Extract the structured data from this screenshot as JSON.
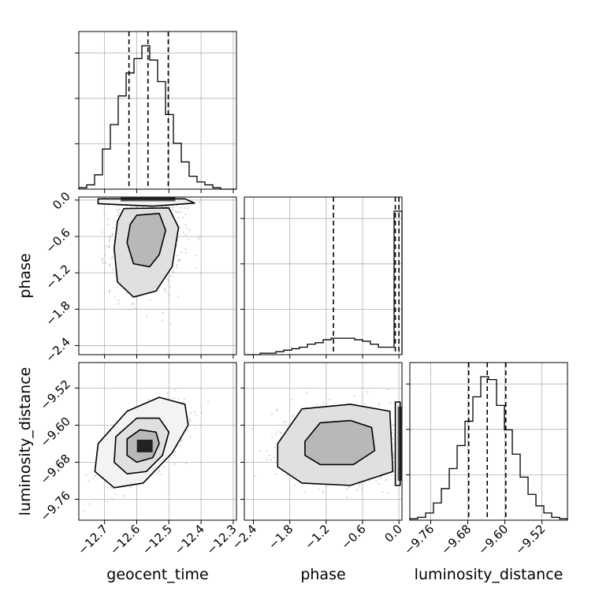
{
  "chart_data": {
    "type": "corner",
    "parameters": [
      "geocent_time",
      "phase",
      "luminosity_distance"
    ],
    "axis_labels": {
      "geocent_time": "geocent_time",
      "phase": "phase",
      "luminosity_distance": "luminosity_distance"
    },
    "grid": true,
    "ranges": {
      "geocent_time": [
        -12.78,
        -12.29
      ],
      "phase": [
        -2.55,
        0.05
      ],
      "luminosity_distance": [
        -9.805,
        -9.465
      ]
    },
    "ticks": {
      "geocent_time": {
        "values": [
          -12.7,
          -12.6,
          -12.5,
          -12.4,
          -12.3
        ],
        "labels": [
          "−12.7",
          "−12.6",
          "−12.5",
          "−12.4",
          "−12.3"
        ]
      },
      "phase": {
        "values": [
          -2.4,
          -1.8,
          -1.2,
          -0.6,
          0.0
        ],
        "labels": [
          "−2.4",
          "−1.8",
          "−1.2",
          "−0.6",
          "0.0"
        ]
      },
      "luminosity_distance": {
        "values": [
          -9.76,
          -9.68,
          -9.6,
          -9.52
        ],
        "labels": [
          "−9.76",
          "−9.68",
          "−9.60",
          "−9.52"
        ]
      }
    },
    "histograms": {
      "geocent_time": {
        "bin_edges": [
          -12.78,
          -12.7555,
          -12.731,
          -12.7065,
          -12.682,
          -12.6575,
          -12.633,
          -12.6085,
          -12.584,
          -12.5595,
          -12.535,
          -12.5105,
          -12.486,
          -12.4615,
          -12.437,
          -12.4125,
          -12.388,
          -12.3635,
          -12.339,
          -12.3145,
          -12.29
        ],
        "counts": [
          1,
          3,
          10,
          28,
          45,
          65,
          81,
          91,
          100,
          90,
          75,
          52,
          32,
          19,
          9,
          5,
          3,
          1,
          0,
          0
        ],
        "quantiles": [
          -12.624,
          -12.565,
          -12.502
        ]
      },
      "phase": {
        "bin_edges": [
          -2.55,
          -2.42,
          -2.29,
          -2.16,
          -2.03,
          -1.9,
          -1.77,
          -1.64,
          -1.51,
          -1.38,
          -1.25,
          -1.12,
          -0.99,
          -0.86,
          -0.73,
          -0.6,
          -0.47,
          -0.34,
          -0.21,
          -0.08,
          0.05
        ],
        "counts": [
          0,
          0,
          1,
          1,
          2,
          3,
          4,
          5,
          7,
          8,
          10,
          11,
          11,
          11,
          10,
          9,
          7,
          5,
          5,
          96
        ],
        "quantiles": [
          -1.08,
          -0.06,
          0.0
        ]
      },
      "luminosity_distance": {
        "bin_edges": [
          -9.805,
          -9.788,
          -9.771,
          -9.754,
          -9.737,
          -9.72,
          -9.703,
          -9.686,
          -9.669,
          -9.652,
          -9.635,
          -9.618,
          -9.601,
          -9.584,
          -9.567,
          -9.55,
          -9.533,
          -9.516,
          -9.499,
          -9.482,
          -9.465
        ],
        "counts": [
          1,
          2,
          5,
          12,
          22,
          36,
          52,
          69,
          86,
          100,
          98,
          80,
          63,
          46,
          30,
          18,
          10,
          5,
          2,
          1
        ],
        "quantiles": [
          -9.678,
          -9.638,
          -9.598
        ]
      }
    },
    "density_panels": [
      {
        "x": "geocent_time",
        "y": "phase",
        "sample_center": [
          -12.57,
          -0.55
        ],
        "sample_spread": [
          0.055,
          0.5
        ],
        "dense_strip": {
          "y_range": [
            -0.02,
            0.05
          ],
          "x_range": [
            -12.65,
            -12.48
          ]
        },
        "contours": [
          [
            [
              -12.6,
              -0.25
            ],
            [
              -12.53,
              -0.22
            ],
            [
              -12.51,
              -0.5
            ],
            [
              -12.53,
              -0.9
            ],
            [
              -12.56,
              -1.1
            ],
            [
              -12.61,
              -1.05
            ],
            [
              -12.63,
              -0.7
            ],
            [
              -12.62,
              -0.4
            ]
          ],
          [
            [
              -12.64,
              -0.14
            ],
            [
              -12.5,
              -0.13
            ],
            [
              -12.47,
              -0.45
            ],
            [
              -12.49,
              -1.1
            ],
            [
              -12.54,
              -1.5
            ],
            [
              -12.61,
              -1.6
            ],
            [
              -12.66,
              -1.35
            ],
            [
              -12.67,
              -0.8
            ],
            [
              -12.66,
              -0.35
            ]
          ],
          [
            [
              -12.72,
              0.02
            ],
            [
              -12.45,
              0.02
            ],
            [
              -12.42,
              -0.05
            ],
            [
              -12.55,
              -0.1
            ],
            [
              -12.72,
              -0.06
            ]
          ]
        ]
      },
      {
        "x": "geocent_time",
        "y": "luminosity_distance",
        "sample_center": [
          -12.57,
          -9.64
        ],
        "sample_spread": [
          0.06,
          0.04
        ],
        "correlation": 0.6,
        "contours": [
          [
            [
              -12.63,
              -9.63
            ],
            [
              -12.59,
              -9.61
            ],
            [
              -12.54,
              -9.615
            ],
            [
              -12.53,
              -9.64
            ],
            [
              -12.55,
              -9.67
            ],
            [
              -12.6,
              -9.68
            ],
            [
              -12.63,
              -9.665
            ]
          ],
          [
            [
              -12.665,
              -9.625
            ],
            [
              -12.6,
              -9.585
            ],
            [
              -12.53,
              -9.585
            ],
            [
              -12.5,
              -9.615
            ],
            [
              -12.52,
              -9.665
            ],
            [
              -12.57,
              -9.7
            ],
            [
              -12.63,
              -9.705
            ],
            [
              -12.67,
              -9.68
            ]
          ],
          [
            [
              -12.72,
              -9.64
            ],
            [
              -12.63,
              -9.57
            ],
            [
              -12.53,
              -9.54
            ],
            [
              -12.45,
              -9.555
            ],
            [
              -12.44,
              -9.6
            ],
            [
              -12.49,
              -9.66
            ],
            [
              -12.58,
              -9.725
            ],
            [
              -12.67,
              -9.735
            ],
            [
              -12.73,
              -9.7
            ]
          ]
        ]
      },
      {
        "x": "phase",
        "y": "luminosity_distance",
        "sample_center": [
          -0.9,
          -9.64
        ],
        "sample_spread": [
          0.55,
          0.04
        ],
        "dense_strip": {
          "x_range": [
            -0.02,
            0.05
          ],
          "y_range": [
            -9.72,
            -9.56
          ]
        },
        "contours": [
          [
            [
              -1.55,
              -9.635
            ],
            [
              -1.3,
              -9.595
            ],
            [
              -0.8,
              -9.59
            ],
            [
              -0.45,
              -9.605
            ],
            [
              -0.4,
              -9.655
            ],
            [
              -0.75,
              -9.685
            ],
            [
              -1.3,
              -9.685
            ],
            [
              -1.55,
              -9.665
            ]
          ],
          [
            [
              -2.0,
              -9.64
            ],
            [
              -1.6,
              -9.565
            ],
            [
              -0.8,
              -9.555
            ],
            [
              -0.15,
              -9.57
            ],
            [
              -0.1,
              -9.7
            ],
            [
              -0.8,
              -9.73
            ],
            [
              -1.6,
              -9.725
            ],
            [
              -2.0,
              -9.69
            ]
          ],
          [
            [
              -0.06,
              -9.55
            ],
            [
              0.02,
              -9.55
            ],
            [
              0.02,
              -9.73
            ],
            [
              -0.06,
              -9.73
            ]
          ]
        ]
      }
    ]
  }
}
